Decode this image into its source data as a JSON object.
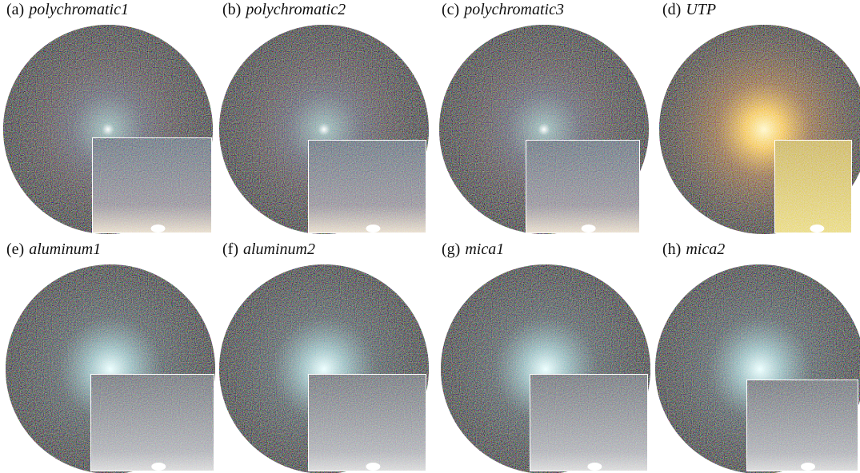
{
  "panels": [
    {
      "tag": "(a)",
      "name": "polychromatic1"
    },
    {
      "tag": "(b)",
      "name": "polychromatic2"
    },
    {
      "tag": "(c)",
      "name": "polychromatic3"
    },
    {
      "tag": "(d)",
      "name": "UTP"
    },
    {
      "tag": "(e)",
      "name": "aluminum1"
    },
    {
      "tag": "(f)",
      "name": "aluminum2"
    },
    {
      "tag": "(g)",
      "name": "mica1"
    },
    {
      "tag": "(h)",
      "name": "mica2"
    }
  ]
}
